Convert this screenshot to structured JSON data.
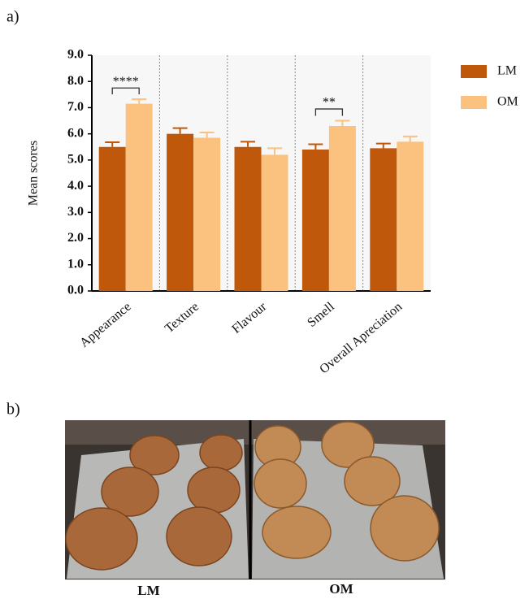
{
  "panel_labels": [
    "a)",
    "b)"
  ],
  "chart_data": {
    "type": "bar",
    "y_label": "Mean scores",
    "categories": [
      "Appearance",
      "Texture",
      "Flavour",
      "Smell",
      "Overall Apreciation"
    ],
    "series": [
      {
        "name": "LM",
        "color": "#c0580c",
        "values": [
          5.5,
          6.0,
          5.5,
          5.4,
          5.45
        ],
        "errors": [
          0.18,
          0.22,
          0.2,
          0.2,
          0.18
        ]
      },
      {
        "name": "OM",
        "color": "#fbc27f",
        "values": [
          7.15,
          5.85,
          5.2,
          6.3,
          5.7
        ],
        "errors": [
          0.17,
          0.2,
          0.25,
          0.2,
          0.2
        ]
      }
    ],
    "ylim": [
      0,
      9
    ],
    "yticks": [
      {
        "value": 0,
        "label": "0.0"
      },
      {
        "value": 1,
        "label": "1.0"
      },
      {
        "value": 2,
        "label": "2.0"
      },
      {
        "value": 3,
        "label": "3.0"
      },
      {
        "value": 4,
        "label": "4.0"
      },
      {
        "value": 5,
        "label": "5.0"
      },
      {
        "value": 6,
        "label": "6.0"
      },
      {
        "value": 7,
        "label": "7.0"
      },
      {
        "value": 8,
        "label": "8.0"
      },
      {
        "value": 9,
        "label": "9.0"
      }
    ],
    "category_dividers": true,
    "legend": "right",
    "annotations": [
      {
        "text": "****",
        "category": "Appearance",
        "y": 7.75
      },
      {
        "text": "**",
        "category": "Smell",
        "y": 6.95
      }
    ]
  },
  "photo": {
    "labels": [
      "LM",
      "OM"
    ]
  }
}
